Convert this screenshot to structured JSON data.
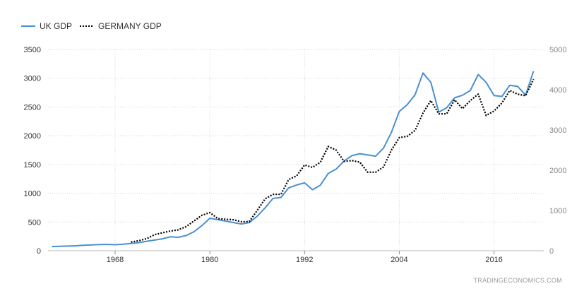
{
  "chart_data": {
    "type": "line",
    "title": "",
    "source": "TRADINGECONOMICS.COM",
    "legend": {
      "placement": "top-left"
    },
    "grid": true,
    "x_ticks": [
      "1968",
      "1980",
      "1992",
      "2004",
      "2016"
    ],
    "xlim": [
      1959.5,
      2022.3
    ],
    "y_left": {
      "ticks": [
        "0",
        "500",
        "1000",
        "1500",
        "2000",
        "2500",
        "3000",
        "3500"
      ],
      "ylim": [
        0,
        3500
      ]
    },
    "y_right": {
      "ticks": [
        "0",
        "1000",
        "2000",
        "3000",
        "4000",
        "5000"
      ],
      "ylim": [
        0,
        5000
      ]
    },
    "series": [
      {
        "name": "UK GDP",
        "axis": "left",
        "color": "#4a90d0",
        "style": "solid",
        "x": [
          1960,
          1961,
          1962,
          1963,
          1964,
          1965,
          1966,
          1967,
          1968,
          1969,
          1970,
          1971,
          1972,
          1973,
          1974,
          1975,
          1976,
          1977,
          1978,
          1979,
          1980,
          1981,
          1982,
          1983,
          1984,
          1985,
          1986,
          1987,
          1988,
          1989,
          1990,
          1991,
          1992,
          1993,
          1994,
          1995,
          1996,
          1997,
          1998,
          1999,
          2000,
          2001,
          2002,
          2003,
          2004,
          2005,
          2006,
          2007,
          2008,
          2009,
          2010,
          2011,
          2012,
          2013,
          2014,
          2015,
          2016,
          2017,
          2018,
          2019,
          2020,
          2021
        ],
        "values": [
          73,
          77,
          81,
          86,
          94,
          101,
          107,
          111,
          104,
          113,
          125,
          141,
          164,
          185,
          207,
          243,
          233,
          264,
          332,
          439,
          565,
          540,
          516,
          490,
          464,
          489,
          601,
          745,
          910,
          926,
          1094,
          1143,
          1180,
          1061,
          1141,
          1344,
          1420,
          1561,
          1653,
          1687,
          1665,
          1644,
          1785,
          2059,
          2420,
          2538,
          2713,
          3091,
          2929,
          2411,
          2486,
          2659,
          2704,
          2786,
          3064,
          2928,
          2699,
          2683,
          2877,
          2857,
          2707,
          3122
        ]
      },
      {
        "name": "GERMANY GDP",
        "axis": "right",
        "color": "#000000",
        "style": "dotted",
        "x": [
          1970,
          1971,
          1972,
          1973,
          1974,
          1975,
          1976,
          1977,
          1978,
          1979,
          1980,
          1981,
          1982,
          1983,
          1984,
          1985,
          1986,
          1987,
          1988,
          1989,
          1990,
          1991,
          1992,
          1993,
          1994,
          1995,
          1996,
          1997,
          1998,
          1999,
          2000,
          2001,
          2002,
          2003,
          2004,
          2005,
          2006,
          2007,
          2008,
          2009,
          2010,
          2011,
          2012,
          2013,
          2014,
          2015,
          2016,
          2017,
          2018,
          2019,
          2020,
          2021
        ],
        "values": [
          216,
          250,
          300,
          400,
          445,
          490,
          520,
          600,
          740,
          880,
          950,
          800,
          780,
          770,
          720,
          725,
          1000,
          1290,
          1400,
          1400,
          1772,
          1860,
          2130,
          2070,
          2200,
          2590,
          2500,
          2220,
          2240,
          2200,
          1950,
          1950,
          2080,
          2500,
          2810,
          2840,
          2990,
          3420,
          3730,
          3400,
          3400,
          3750,
          3530,
          3730,
          3890,
          3360,
          3470,
          3670,
          3980,
          3890,
          3850,
          4260
        ]
      }
    ]
  }
}
